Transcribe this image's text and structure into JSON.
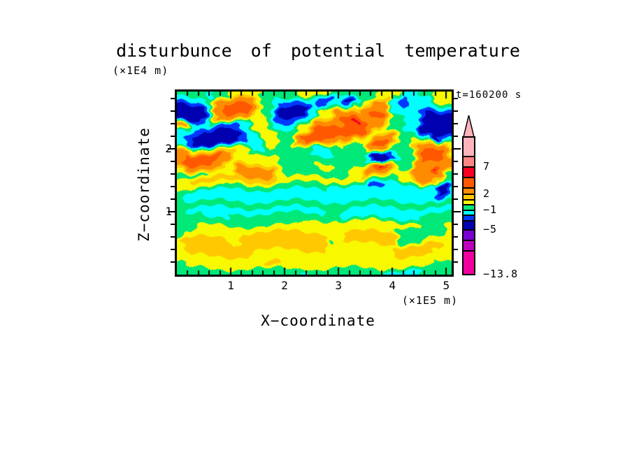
{
  "chart_data": {
    "type": "heatmap",
    "title": "disturbunce of potential temperature",
    "y_units_label": "(×1E4 m)",
    "x_units_label": "(×1E5 m)",
    "time_label": "t=160200 s",
    "xlabel": "X−coordinate",
    "ylabel": "Z−coordinate",
    "x_range": [
      0,
      5.1
    ],
    "y_range": [
      0,
      2.91
    ],
    "x_major_ticks": [
      "1",
      "2",
      "3",
      "4",
      "5"
    ],
    "y_major_ticks": [
      "1",
      "2"
    ],
    "minor_tick_step": 0.2,
    "legend_position": "right",
    "grid_lines": "off",
    "levels": {
      "names": [
        "magenta",
        "purple",
        "violet",
        "navy",
        "blue",
        "cyan",
        "green",
        "yellow",
        "gold",
        "orange",
        "red-orange",
        "red",
        "salmon",
        "pink"
      ],
      "colors": [
        "#f0009c",
        "#bc00bc",
        "#7800d0",
        "#0000b0",
        "#0038ff",
        "#00ffff",
        "#00e878",
        "#f8f800",
        "#ffc800",
        "#ff8c00",
        "#ff5800",
        "#f80020",
        "#ff8484",
        "#ffb4bc"
      ]
    },
    "colorbar": {
      "segments": [
        {
          "level": 13,
          "h": 28
        },
        {
          "level": 12,
          "h": 15
        },
        {
          "level": 11,
          "h": 15
        },
        {
          "level": 10,
          "h": 15
        },
        {
          "level": 9,
          "h": 9
        },
        {
          "level": 8,
          "h": 8
        },
        {
          "level": 7,
          "h": 7
        },
        {
          "level": 6,
          "h": 8
        },
        {
          "level": 5,
          "h": 7
        },
        {
          "level": 4,
          "h": 8
        },
        {
          "level": 3,
          "h": 13
        },
        {
          "level": 2,
          "h": 15
        },
        {
          "level": 1,
          "h": 15
        },
        {
          "level": 0,
          "h": 34
        }
      ],
      "boundary_labels": [
        {
          "after": 1,
          "text": "7"
        },
        {
          "after": 4,
          "text": "2"
        },
        {
          "after": 7,
          "text": "−1"
        },
        {
          "after": 10,
          "text": "−5"
        },
        {
          "after": 13,
          "text": "−13.8"
        }
      ]
    },
    "grid": {
      "cols": 50,
      "rows": 30,
      "encoding": "run-length rows, value = hex index into levels.colors (0=min/magenta .. d=max/pink)",
      "rle_rows": [
        [
          [
            6,
            "6"
          ],
          [
            1,
            "5"
          ],
          [
            3,
            "6"
          ],
          [
            6,
            "7"
          ],
          [
            6,
            "6"
          ],
          [
            6,
            "7"
          ],
          [
            8,
            "6"
          ],
          [
            5,
            "7"
          ],
          [
            3,
            "5"
          ],
          [
            3,
            "6"
          ],
          [
            3,
            "7"
          ]
        ],
        [
          [
            6,
            "5"
          ],
          [
            1,
            "7"
          ],
          [
            7,
            "9"
          ],
          [
            1,
            "7"
          ],
          [
            2,
            "6"
          ],
          [
            2,
            "5"
          ],
          [
            4,
            "4"
          ],
          [
            2,
            "5"
          ],
          [
            3,
            "4"
          ],
          [
            2,
            "5"
          ],
          [
            2,
            "3"
          ],
          [
            2,
            "5"
          ],
          [
            2,
            "7"
          ],
          [
            3,
            "9"
          ],
          [
            2,
            "5"
          ],
          [
            1,
            "4"
          ],
          [
            5,
            "5"
          ],
          [
            3,
            "7"
          ]
        ],
        [
          [
            5,
            "3"
          ],
          [
            1,
            "5"
          ],
          [
            2,
            "9"
          ],
          [
            5,
            "a"
          ],
          [
            1,
            "9"
          ],
          [
            1,
            "7"
          ],
          [
            2,
            "6"
          ],
          [
            1,
            "5"
          ],
          [
            6,
            "3"
          ],
          [
            1,
            "5"
          ],
          [
            2,
            "4"
          ],
          [
            5,
            "5"
          ],
          [
            2,
            "7"
          ],
          [
            5,
            "9"
          ],
          [
            2,
            "5"
          ],
          [
            2,
            "4"
          ],
          [
            7,
            "5"
          ]
        ],
        [
          [
            5,
            "3"
          ],
          [
            1,
            "5"
          ],
          [
            2,
            "9"
          ],
          [
            5,
            "a"
          ],
          [
            1,
            "9"
          ],
          [
            1,
            "7"
          ],
          [
            2,
            "6"
          ],
          [
            1,
            "5"
          ],
          [
            6,
            "3"
          ],
          [
            2,
            "5"
          ],
          [
            3,
            "7"
          ],
          [
            6,
            "9"
          ],
          [
            3,
            "a"
          ],
          [
            1,
            "9"
          ],
          [
            5,
            "5"
          ],
          [
            1,
            "4"
          ],
          [
            5,
            "3"
          ]
        ],
        [
          [
            4,
            "3"
          ],
          [
            1,
            "4"
          ],
          [
            1,
            "5"
          ],
          [
            1,
            "7"
          ],
          [
            6,
            "9"
          ],
          [
            4,
            "7"
          ],
          [
            1,
            "6"
          ],
          [
            5,
            "4"
          ],
          [
            3,
            "5"
          ],
          [
            3,
            "7"
          ],
          [
            1,
            "9"
          ],
          [
            2,
            "a"
          ],
          [
            1,
            "b"
          ],
          [
            1,
            "a"
          ],
          [
            4,
            "9"
          ],
          [
            1,
            "7"
          ],
          [
            2,
            "6"
          ],
          [
            3,
            "5"
          ],
          [
            6,
            "3"
          ]
        ],
        [
          [
            2,
            "9"
          ],
          [
            1,
            "7"
          ],
          [
            4,
            "5"
          ],
          [
            4,
            "4"
          ],
          [
            3,
            "5"
          ],
          [
            3,
            "7"
          ],
          [
            1,
            "6"
          ],
          [
            4,
            "5"
          ],
          [
            3,
            "7"
          ],
          [
            5,
            "9"
          ],
          [
            4,
            "a"
          ],
          [
            3,
            "9"
          ],
          [
            1,
            "7"
          ],
          [
            3,
            "6"
          ],
          [
            3,
            "5"
          ],
          [
            6,
            "3"
          ]
        ],
        [
          [
            3,
            "5"
          ],
          [
            2,
            "4"
          ],
          [
            6,
            "3"
          ],
          [
            1,
            "4"
          ],
          [
            2,
            "5"
          ],
          [
            4,
            "7"
          ],
          [
            4,
            "6"
          ],
          [
            2,
            "7"
          ],
          [
            1,
            "9"
          ],
          [
            9,
            "a"
          ],
          [
            1,
            "9"
          ],
          [
            3,
            "7"
          ],
          [
            3,
            "6"
          ],
          [
            3,
            "5"
          ],
          [
            6,
            "3"
          ]
        ],
        [
          [
            2,
            "5"
          ],
          [
            1,
            "4"
          ],
          [
            9,
            "3"
          ],
          [
            1,
            "4"
          ],
          [
            2,
            "5"
          ],
          [
            3,
            "7"
          ],
          [
            3,
            "6"
          ],
          [
            1,
            "9"
          ],
          [
            7,
            "a"
          ],
          [
            3,
            "9"
          ],
          [
            4,
            "7"
          ],
          [
            4,
            "9"
          ],
          [
            1,
            "7"
          ],
          [
            6,
            "6"
          ],
          [
            1,
            "3"
          ],
          [
            2,
            "5"
          ]
        ],
        [
          [
            2,
            "5"
          ],
          [
            1,
            "4"
          ],
          [
            8,
            "3"
          ],
          [
            1,
            "4"
          ],
          [
            3,
            "5"
          ],
          [
            1,
            "6"
          ],
          [
            2,
            "7"
          ],
          [
            3,
            "6"
          ],
          [
            2,
            "9"
          ],
          [
            3,
            "a"
          ],
          [
            3,
            "9"
          ],
          [
            2,
            "7"
          ],
          [
            4,
            "6"
          ],
          [
            1,
            "9"
          ],
          [
            3,
            "a"
          ],
          [
            1,
            "9"
          ],
          [
            1,
            "7"
          ],
          [
            2,
            "6"
          ],
          [
            1,
            "7"
          ],
          [
            5,
            "9"
          ],
          [
            1,
            "7"
          ]
        ],
        [
          [
            2,
            "9"
          ],
          [
            11,
            "7"
          ],
          [
            3,
            "5"
          ],
          [
            9,
            "6"
          ],
          [
            3,
            "5"
          ],
          [
            7,
            "6"
          ],
          [
            4,
            "9"
          ],
          [
            1,
            "7"
          ],
          [
            3,
            "6"
          ],
          [
            1,
            "9"
          ],
          [
            4,
            "a"
          ],
          [
            1,
            "9"
          ],
          [
            1,
            "7"
          ]
        ],
        [
          [
            1,
            "9"
          ],
          [
            7,
            "a"
          ],
          [
            2,
            "9"
          ],
          [
            9,
            "7"
          ],
          [
            6,
            "6"
          ],
          [
            4,
            "5"
          ],
          [
            5,
            "6"
          ],
          [
            1,
            "5"
          ],
          [
            3,
            "3"
          ],
          [
            1,
            "4"
          ],
          [
            1,
            "5"
          ],
          [
            3,
            "6"
          ],
          [
            1,
            "9"
          ],
          [
            4,
            "a"
          ],
          [
            1,
            "9"
          ],
          [
            1,
            "7"
          ]
        ],
        [
          [
            1,
            "9"
          ],
          [
            6,
            "a"
          ],
          [
            3,
            "9"
          ],
          [
            9,
            "7"
          ],
          [
            15,
            "6"
          ],
          [
            1,
            "5"
          ],
          [
            3,
            "3"
          ],
          [
            1,
            "4"
          ],
          [
            1,
            "5"
          ],
          [
            3,
            "6"
          ],
          [
            7,
            "9"
          ]
        ],
        [
          [
            2,
            "7"
          ],
          [
            7,
            "9"
          ],
          [
            2,
            "7"
          ],
          [
            7,
            "9"
          ],
          [
            1,
            "7"
          ],
          [
            6,
            "6"
          ],
          [
            3,
            "7"
          ],
          [
            3,
            "6"
          ],
          [
            3,
            "7"
          ],
          [
            1,
            "9"
          ],
          [
            1,
            "a"
          ],
          [
            1,
            "b"
          ],
          [
            1,
            "a"
          ],
          [
            1,
            "9"
          ],
          [
            1,
            "7"
          ],
          [
            3,
            "6"
          ],
          [
            4,
            "9"
          ],
          [
            1,
            "b"
          ],
          [
            2,
            "9"
          ]
        ],
        [
          [
            6,
            "6"
          ],
          [
            5,
            "7"
          ],
          [
            6,
            "9"
          ],
          [
            2,
            "7"
          ],
          [
            12,
            "6"
          ],
          [
            3,
            "7"
          ],
          [
            5,
            "9"
          ],
          [
            4,
            "7"
          ],
          [
            6,
            "9"
          ],
          [
            1,
            "6"
          ]
        ],
        [
          [
            2,
            "7"
          ],
          [
            16,
            "8"
          ],
          [
            17,
            "7"
          ],
          [
            6,
            "6"
          ],
          [
            3,
            "7"
          ],
          [
            3,
            "9"
          ],
          [
            2,
            "7"
          ],
          [
            1,
            "6"
          ]
        ],
        [
          [
            8,
            "7"
          ],
          [
            20,
            "6"
          ],
          [
            7,
            "5"
          ],
          [
            3,
            "4"
          ],
          [
            9,
            "5"
          ],
          [
            2,
            "3"
          ],
          [
            1,
            "5"
          ]
        ],
        [
          [
            1,
            "6"
          ],
          [
            46,
            "5"
          ],
          [
            2,
            "3"
          ],
          [
            1,
            "5"
          ]
        ],
        [
          [
            1,
            "6"
          ],
          [
            46,
            "5"
          ],
          [
            2,
            "4"
          ],
          [
            1,
            "5"
          ]
        ],
        [
          [
            50,
            "6"
          ]
        ],
        [
          [
            2,
            "6"
          ],
          [
            25,
            "5"
          ],
          [
            3,
            "6"
          ],
          [
            20,
            "5"
          ]
        ],
        [
          [
            5,
            "6"
          ],
          [
            4,
            "5"
          ],
          [
            21,
            "6"
          ],
          [
            14,
            "5"
          ],
          [
            6,
            "6"
          ]
        ],
        [
          [
            23,
            "6"
          ],
          [
            21,
            "7"
          ],
          [
            6,
            "6"
          ]
        ],
        [
          [
            3,
            "6"
          ],
          [
            36,
            "7"
          ],
          [
            9,
            "6"
          ],
          [
            2,
            "7"
          ]
        ],
        [
          [
            1,
            "6"
          ],
          [
            11,
            "7"
          ],
          [
            15,
            "8"
          ],
          [
            3,
            "7"
          ],
          [
            10,
            "8"
          ],
          [
            9,
            "6"
          ],
          [
            1,
            "7"
          ]
        ],
        [
          [
            1,
            "7"
          ],
          [
            9,
            "8"
          ],
          [
            2,
            "7"
          ],
          [
            15,
            "8"
          ],
          [
            1,
            "6"
          ],
          [
            2,
            "7"
          ],
          [
            10,
            "8"
          ],
          [
            5,
            "6"
          ],
          [
            5,
            "7"
          ]
        ],
        [
          [
            2,
            "7"
          ],
          [
            25,
            "8"
          ],
          [
            13,
            "7"
          ],
          [
            9,
            "8"
          ],
          [
            1,
            "7"
          ]
        ],
        [
          [
            2,
            "7"
          ],
          [
            11,
            "8"
          ],
          [
            27,
            "7"
          ],
          [
            7,
            "8"
          ],
          [
            3,
            "7"
          ]
        ],
        [
          [
            50,
            "7"
          ]
        ],
        [
          [
            1,
            "6"
          ],
          [
            15,
            "7"
          ],
          [
            3,
            "8"
          ],
          [
            27,
            "7"
          ],
          [
            4,
            "6"
          ]
        ],
        [
          [
            23,
            "6"
          ],
          [
            1,
            "4"
          ],
          [
            13,
            "6"
          ],
          [
            7,
            "5"
          ],
          [
            6,
            "6"
          ]
        ]
      ]
    }
  }
}
